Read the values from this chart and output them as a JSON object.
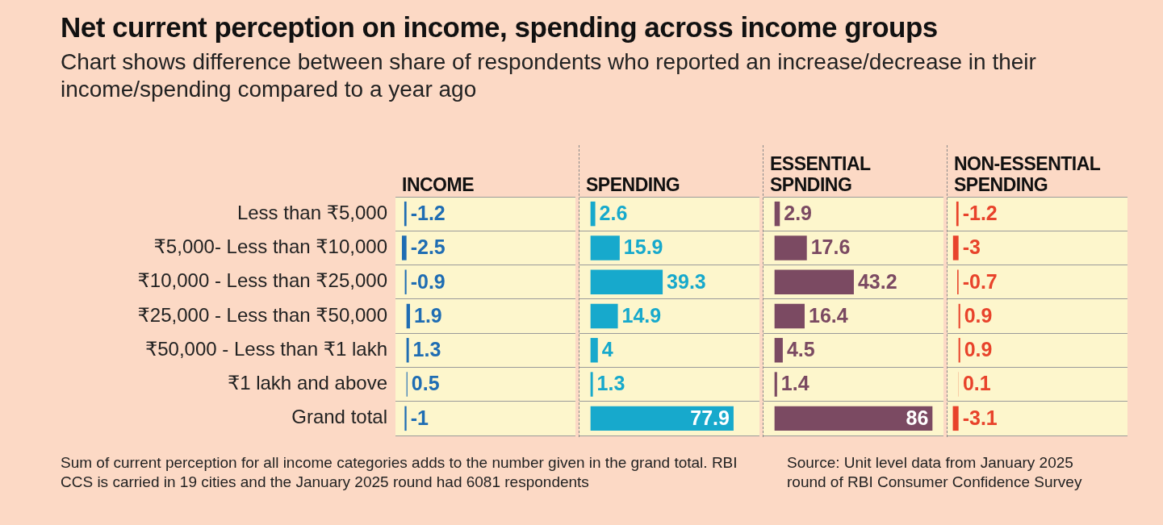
{
  "chart_data": [
    {
      "type": "other",
      "title": "Net current perception on income, spending across income groups",
      "subtitle": "Chart shows difference between share of respondents who reported an increase/decrease in their income/spending compared to a year ago",
      "annotations": [
        "Sum of current perception for all income categories adds to the number given in the grand total. RBI CCS is carried in 19 cities and the January 2025 round had 6081 respondents",
        "Source: Unit level data from January 2025 round of RBI Consumer Confidence Survey"
      ]
    },
    {
      "type": "bar",
      "orientation": "horizontal",
      "title": "INCOME",
      "categories": [
        "Less than ₹5,000",
        "₹5,000- Less than ₹10,000",
        "₹10,000 - Less than ₹25,000",
        "₹25,000 - Less than ₹50,000",
        "₹50,000 - Less than ₹1 lakh",
        "₹1 lakh and above",
        "Grand total"
      ],
      "values": [
        -1.2,
        -2.5,
        -0.9,
        1.9,
        1.3,
        0.5,
        -1
      ],
      "color": "#1f6db3",
      "xlim": [
        -6,
        92
      ],
      "data_labels": true,
      "grid": "y",
      "tick_labels": "y",
      "legend": false
    },
    {
      "type": "bar",
      "orientation": "horizontal",
      "title": "SPENDING",
      "categories": [
        null,
        null,
        null,
        null,
        null,
        null,
        null
      ],
      "values": [
        2.6,
        15.9,
        39.3,
        14.9,
        4,
        1.3,
        77.9
      ],
      "color": "#17a9cc",
      "xlim": [
        -6,
        92
      ],
      "data_labels": true,
      "grid": "y",
      "tick_labels": false,
      "legend": false
    },
    {
      "type": "bar",
      "orientation": "horizontal",
      "title": "ESSENTIAL SPNDING",
      "categories": [
        null,
        null,
        null,
        null,
        null,
        null,
        null
      ],
      "values": [
        2.9,
        17.6,
        43.2,
        16.4,
        4.5,
        1.4,
        86
      ],
      "color": "#7b4a62",
      "xlim": [
        -6,
        92
      ],
      "data_labels": true,
      "grid": "y",
      "tick_labels": false,
      "legend": false
    },
    {
      "type": "bar",
      "orientation": "horizontal",
      "title": "NON-ESSENTIAL SPENDING",
      "categories": [
        null,
        null,
        null,
        null,
        null,
        null,
        null
      ],
      "values": [
        -1.2,
        -3,
        -0.7,
        0.9,
        0.9,
        0.1,
        -3.1
      ],
      "color": "#e8432b",
      "xlim": [
        -6,
        92
      ],
      "data_labels": true,
      "grid": "y",
      "tick_labels": false,
      "legend": false
    }
  ]
}
